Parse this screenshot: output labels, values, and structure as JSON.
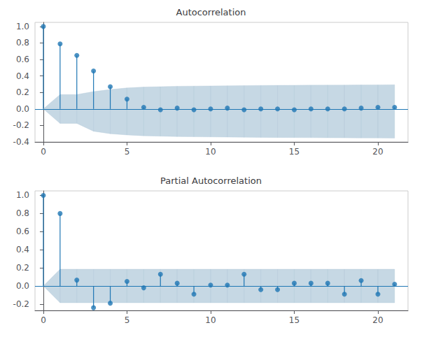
{
  "chart_data": [
    {
      "type": "stem",
      "title": "Autocorrelation",
      "x": [
        0,
        1,
        2,
        3,
        4,
        5,
        6,
        7,
        8,
        9,
        10,
        11,
        12,
        13,
        14,
        15,
        16,
        17,
        18,
        19,
        20,
        21
      ],
      "series": [
        {
          "type": "band",
          "color": "#aec7d8",
          "upper": [
            0.0,
            0.175,
            0.175,
            0.21,
            0.235,
            0.255,
            0.265,
            0.27,
            0.275,
            0.277,
            0.279,
            0.281,
            0.283,
            0.285,
            0.286,
            0.287,
            0.288,
            0.289,
            0.29,
            0.291,
            0.292,
            0.293
          ],
          "lower": [
            0.0,
            -0.175,
            -0.175,
            -0.27,
            -0.3,
            -0.315,
            -0.325,
            -0.33,
            -0.335,
            -0.337,
            -0.339,
            -0.341,
            -0.343,
            -0.345,
            -0.346,
            -0.347,
            -0.348,
            -0.349,
            -0.35,
            -0.351,
            -0.352,
            -0.353
          ]
        },
        {
          "type": "stem",
          "color": "#1f77b4",
          "values": [
            1.0,
            0.79,
            0.65,
            0.46,
            0.27,
            0.12,
            0.02,
            -0.01,
            0.01,
            -0.01,
            0.0,
            0.01,
            -0.01,
            0.0,
            0.0,
            -0.01,
            0.0,
            0.0,
            0.0,
            0.01,
            0.02,
            0.02
          ]
        }
      ],
      "xlim": [
        -0.5,
        21.8
      ],
      "xticks": [
        0,
        5,
        10,
        15,
        20
      ],
      "ylim": [
        -0.4,
        1.05
      ],
      "yticks": [
        -0.4,
        -0.2,
        {
          "value": 0.0,
          "label": "0.0"
        },
        0.2,
        0.4,
        0.6,
        0.8,
        {
          "value": 1.0,
          "label": "1.0"
        }
      ],
      "grid": false
    },
    {
      "type": "stem",
      "title": "Partial Autocorrelation",
      "x": [
        0,
        1,
        2,
        3,
        4,
        5,
        6,
        7,
        8,
        9,
        10,
        11,
        12,
        13,
        14,
        15,
        16,
        17,
        18,
        19,
        20,
        21
      ],
      "series": [
        {
          "type": "band",
          "color": "#aec7d8",
          "upper": [
            0.0,
            0.185,
            0.185,
            0.185,
            0.185,
            0.185,
            0.185,
            0.185,
            0.185,
            0.185,
            0.185,
            0.185,
            0.185,
            0.185,
            0.185,
            0.185,
            0.185,
            0.185,
            0.185,
            0.185,
            0.185,
            0.185
          ],
          "lower": [
            0.0,
            -0.185,
            -0.185,
            -0.185,
            -0.185,
            -0.185,
            -0.185,
            -0.185,
            -0.185,
            -0.185,
            -0.185,
            -0.185,
            -0.185,
            -0.185,
            -0.185,
            -0.185,
            -0.185,
            -0.185,
            -0.185,
            -0.185,
            -0.185,
            -0.185
          ]
        },
        {
          "type": "stem",
          "color": "#1f77b4",
          "values": [
            1.0,
            0.8,
            0.065,
            -0.24,
            -0.19,
            0.05,
            -0.02,
            0.13,
            0.03,
            -0.09,
            0.01,
            0.01,
            0.13,
            -0.04,
            -0.04,
            0.03,
            0.03,
            0.03,
            -0.09,
            0.06,
            -0.09,
            0.02
          ]
        }
      ],
      "xlim": [
        -0.5,
        21.8
      ],
      "xticks": [
        0,
        5,
        10,
        15,
        20
      ],
      "ylim": [
        -0.27,
        1.05
      ],
      "yticks": [
        -0.2,
        {
          "value": 0.0,
          "label": "0.0"
        },
        0.2,
        0.4,
        0.6,
        0.8,
        {
          "value": 1.0,
          "label": "1.0"
        }
      ],
      "grid": false
    }
  ]
}
